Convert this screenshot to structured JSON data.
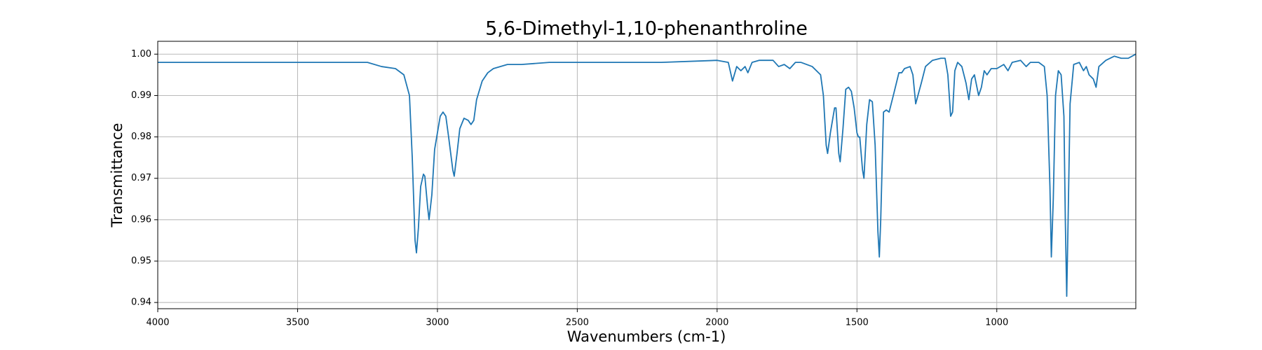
{
  "chart_data": {
    "type": "line",
    "title": "5,6-Dimethyl-1,10-phenanthroline",
    "xlabel": "Wavenumbers (cm-1)",
    "ylabel": "Transmittance",
    "color": "#1f77b4",
    "grid": true,
    "xlim": [
      4000,
      503
    ],
    "ylim": [
      0.9385,
      1.0031
    ],
    "xticks": [
      4000,
      3500,
      3000,
      2500,
      2000,
      1500,
      1000
    ],
    "yticks": [
      0.94,
      0.95,
      0.96,
      0.97,
      0.98,
      0.99,
      {
        "value": 1,
        "label": "1.00"
      }
    ],
    "x": [
      4000,
      3800,
      3600,
      3400,
      3250,
      3200,
      3150,
      3120,
      3100,
      3090,
      3080,
      3075,
      3068,
      3060,
      3050,
      3045,
      3035,
      3030,
      3020,
      3010,
      3000,
      2990,
      2980,
      2970,
      2960,
      2945,
      2940,
      2930,
      2920,
      2905,
      2890,
      2880,
      2870,
      2860,
      2840,
      2820,
      2800,
      2750,
      2700,
      2600,
      2400,
      2200,
      2000,
      1960,
      1945,
      1930,
      1915,
      1900,
      1890,
      1875,
      1850,
      1800,
      1780,
      1760,
      1740,
      1720,
      1700,
      1660,
      1630,
      1620,
      1610,
      1605,
      1595,
      1580,
      1575,
      1565,
      1560,
      1550,
      1540,
      1530,
      1520,
      1510,
      1500,
      1495,
      1490,
      1480,
      1475,
      1465,
      1455,
      1445,
      1435,
      1425,
      1420,
      1415,
      1405,
      1395,
      1385,
      1370,
      1350,
      1340,
      1330,
      1310,
      1300,
      1290,
      1280,
      1270,
      1255,
      1230,
      1200,
      1185,
      1175,
      1165,
      1158,
      1150,
      1140,
      1125,
      1110,
      1100,
      1090,
      1080,
      1065,
      1055,
      1045,
      1035,
      1020,
      1000,
      975,
      960,
      945,
      915,
      895,
      880,
      850,
      830,
      820,
      810,
      805,
      798,
      790,
      780,
      770,
      760,
      755,
      750,
      745,
      738,
      725,
      705,
      690,
      680,
      670,
      655,
      645,
      635,
      610,
      580,
      555,
      530,
      503
    ],
    "values": [
      0.998,
      0.998,
      0.998,
      0.998,
      0.998,
      0.997,
      0.9965,
      0.995,
      0.99,
      0.975,
      0.955,
      0.952,
      0.958,
      0.968,
      0.971,
      0.9705,
      0.963,
      0.96,
      0.966,
      0.977,
      0.981,
      0.985,
      0.986,
      0.985,
      0.98,
      0.972,
      0.9705,
      0.976,
      0.982,
      0.9845,
      0.984,
      0.983,
      0.984,
      0.989,
      0.9935,
      0.9955,
      0.9965,
      0.9975,
      0.9975,
      0.998,
      0.998,
      0.998,
      0.9985,
      0.998,
      0.9935,
      0.997,
      0.996,
      0.997,
      0.9955,
      0.998,
      0.9985,
      0.9985,
      0.997,
      0.9975,
      0.9965,
      0.998,
      0.998,
      0.997,
      0.995,
      0.99,
      0.978,
      0.976,
      0.981,
      0.987,
      0.987,
      0.976,
      0.974,
      0.982,
      0.9915,
      0.992,
      0.991,
      0.987,
      0.981,
      0.98,
      0.98,
      0.972,
      0.97,
      0.983,
      0.989,
      0.9885,
      0.978,
      0.957,
      0.951,
      0.96,
      0.986,
      0.9865,
      0.986,
      0.99,
      0.9955,
      0.9955,
      0.9965,
      0.997,
      0.995,
      0.988,
      0.9905,
      0.993,
      0.997,
      0.9985,
      0.999,
      0.999,
      0.995,
      0.985,
      0.986,
      0.996,
      0.998,
      0.997,
      0.993,
      0.989,
      0.994,
      0.995,
      0.99,
      0.992,
      0.996,
      0.995,
      0.9965,
      0.9965,
      0.9975,
      0.996,
      0.998,
      0.9985,
      0.997,
      0.998,
      0.998,
      0.997,
      0.99,
      0.968,
      0.951,
      0.965,
      0.99,
      0.996,
      0.995,
      0.985,
      0.96,
      0.9415,
      0.96,
      0.988,
      0.9975,
      0.998,
      0.996,
      0.997,
      0.995,
      0.994,
      0.992,
      0.997,
      0.9985,
      0.9995,
      0.999,
      0.999,
      1.0
    ]
  }
}
